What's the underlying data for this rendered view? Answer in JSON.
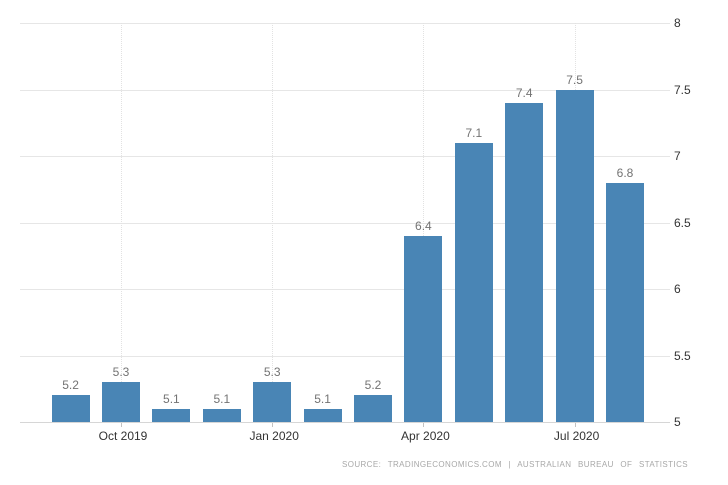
{
  "chart_data": {
    "type": "bar",
    "title": "",
    "values": [
      5.2,
      5.3,
      5.1,
      5.1,
      5.3,
      5.1,
      5.2,
      6.4,
      7.1,
      7.4,
      7.5,
      6.8
    ],
    "data_labels": [
      "5.2",
      "5.3",
      "5.1",
      "5.1",
      "5.3",
      "5.1",
      "5.2",
      "6.4",
      "7.1",
      "7.4",
      "7.5",
      "6.8"
    ],
    "x_ticks": [
      {
        "label": "Oct 2019",
        "bar_index": 1
      },
      {
        "label": "Jan 2020",
        "bar_index": 4
      },
      {
        "label": "Apr 2020",
        "bar_index": 7
      },
      {
        "label": "Jul 2020",
        "bar_index": 10
      }
    ],
    "y_ticks": [
      5,
      5.5,
      6,
      6.5,
      7,
      7.5,
      8
    ],
    "y_tick_labels": [
      "5",
      "5.5",
      "6",
      "6.5",
      "7",
      "7.5",
      "8"
    ],
    "ylim": [
      5,
      8
    ],
    "y_axis_position": "right",
    "grid": true,
    "legend": false,
    "colors": {
      "bar": "#4985B5",
      "gridline": "#e6e6e6",
      "axis_line": "#d6d6d6",
      "axis_label": "#333333",
      "value_label": "#737373",
      "source_text": "#a8a8a8"
    }
  },
  "source": {
    "text": "SOURCE: TRADINGECONOMICS.COM  |  AUSTRALIAN BUREAU OF STATISTICS"
  }
}
